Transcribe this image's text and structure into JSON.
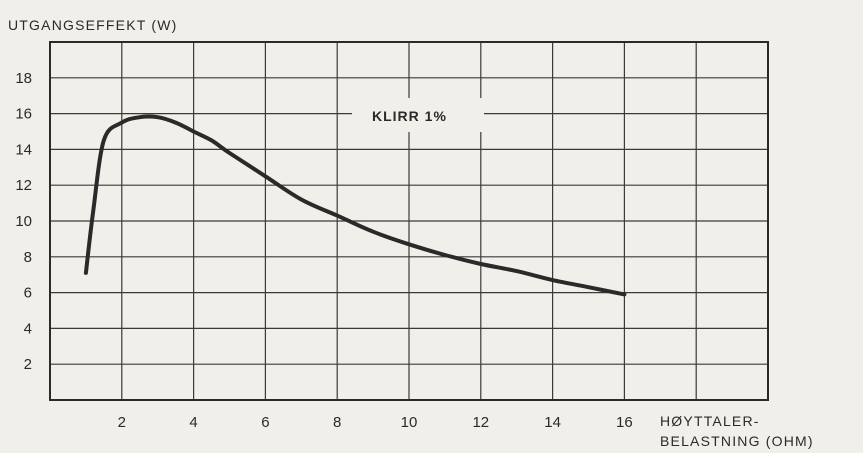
{
  "chart_data": {
    "type": "line",
    "ylabel": "UTGANGSEFFEKT (W)",
    "xlabel_line1": "HØYTTALER-",
    "xlabel_line2": "BELASTNING  (OHM)",
    "annotation": "KLIRR 1%",
    "xlim": [
      0,
      20
    ],
    "ylim": [
      0,
      20
    ],
    "x_ticks": [
      2,
      4,
      6,
      8,
      10,
      12,
      14,
      16
    ],
    "y_ticks": [
      2,
      4,
      6,
      8,
      10,
      12,
      14,
      16,
      18
    ],
    "grid": true,
    "series": [
      {
        "x": [
          1.0,
          1.2,
          1.5,
          2.0,
          2.5,
          3.0,
          3.5,
          4.0,
          4.5,
          5.0,
          6.0,
          7.0,
          8.0,
          9.0,
          10.0,
          11.0,
          12.0,
          13.0,
          14.0,
          15.0,
          16.0
        ],
        "y": [
          7.1,
          10.5,
          14.5,
          15.5,
          15.8,
          15.8,
          15.5,
          15.0,
          14.5,
          13.8,
          12.5,
          11.2,
          10.3,
          9.4,
          8.7,
          8.1,
          7.6,
          7.2,
          6.7,
          6.3,
          5.9
        ]
      }
    ]
  },
  "colors": {
    "background": "#f1efe9",
    "ink": "#2a2a2a",
    "grid": "#3a3a3a"
  }
}
